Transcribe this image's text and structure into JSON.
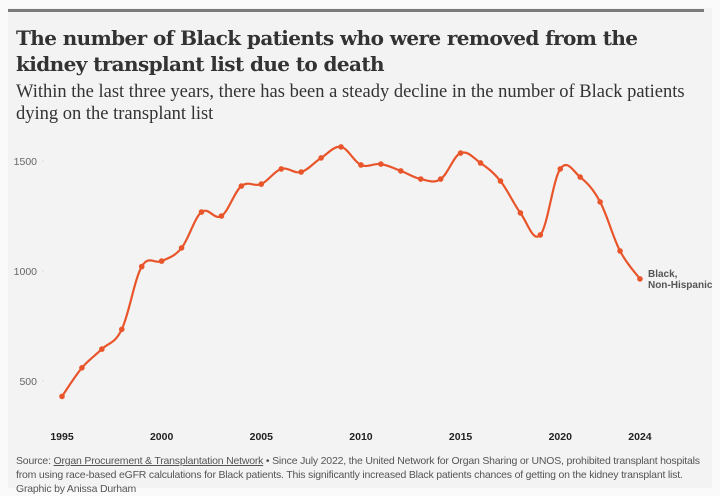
{
  "header": {
    "title": "The number of Black patients who were removed from the kidney transplant list due to death",
    "subtitle": "Within the last three years, there has been a steady decline in the number of Black patients dying on the transplant list"
  },
  "footer": {
    "source_prefix": "Source: ",
    "source_link": "Organ Procurement & Transplantation Network",
    "note": " • Since July 2022, the United Network for Organ Sharing or UNOS, prohibited transplant hospitals from using race-based eGFR calculations for Black patients. This significantly increased Black patients chances of getting on the kidney transplant list.",
    "credit": "Graphic by Anissa Durham"
  },
  "colors": {
    "line": "#e9552b",
    "card": "#f3f3f3",
    "rule": "#7a7a7a"
  },
  "chart_data": {
    "type": "line",
    "title": "The number of Black patients who were removed from the kidney transplant list due to death",
    "subtitle": "Within the last three years, there has been a steady decline in the number of Black patients dying on the transplant list",
    "xlabel": "",
    "ylabel": "",
    "x": [
      1995,
      1996,
      1997,
      1998,
      1999,
      2000,
      2001,
      2002,
      2003,
      2004,
      2005,
      2006,
      2007,
      2008,
      2009,
      2010,
      2011,
      2012,
      2013,
      2014,
      2015,
      2016,
      2017,
      2018,
      2019,
      2020,
      2021,
      2022,
      2023,
      2024
    ],
    "series": [
      {
        "name": "Black, Non-Hispanic",
        "label_lines": [
          "Black,",
          "Non-Hispanic"
        ],
        "values": [
          430,
          560,
          645,
          735,
          1020,
          1045,
          1105,
          1268,
          1250,
          1386,
          1395,
          1464,
          1450,
          1514,
          1564,
          1482,
          1486,
          1455,
          1418,
          1418,
          1536,
          1491,
          1409,
          1264,
          1164,
          1464,
          1427,
          1314,
          1091,
          964
        ]
      }
    ],
    "xticks": [
      1995,
      2000,
      2005,
      2010,
      2015,
      2020,
      2024
    ],
    "yticks": [
      500,
      1000,
      1500
    ],
    "xlim": [
      1995,
      2024
    ],
    "ylim": [
      330,
      1600
    ],
    "grid": false,
    "legend": "inline-end-label"
  }
}
